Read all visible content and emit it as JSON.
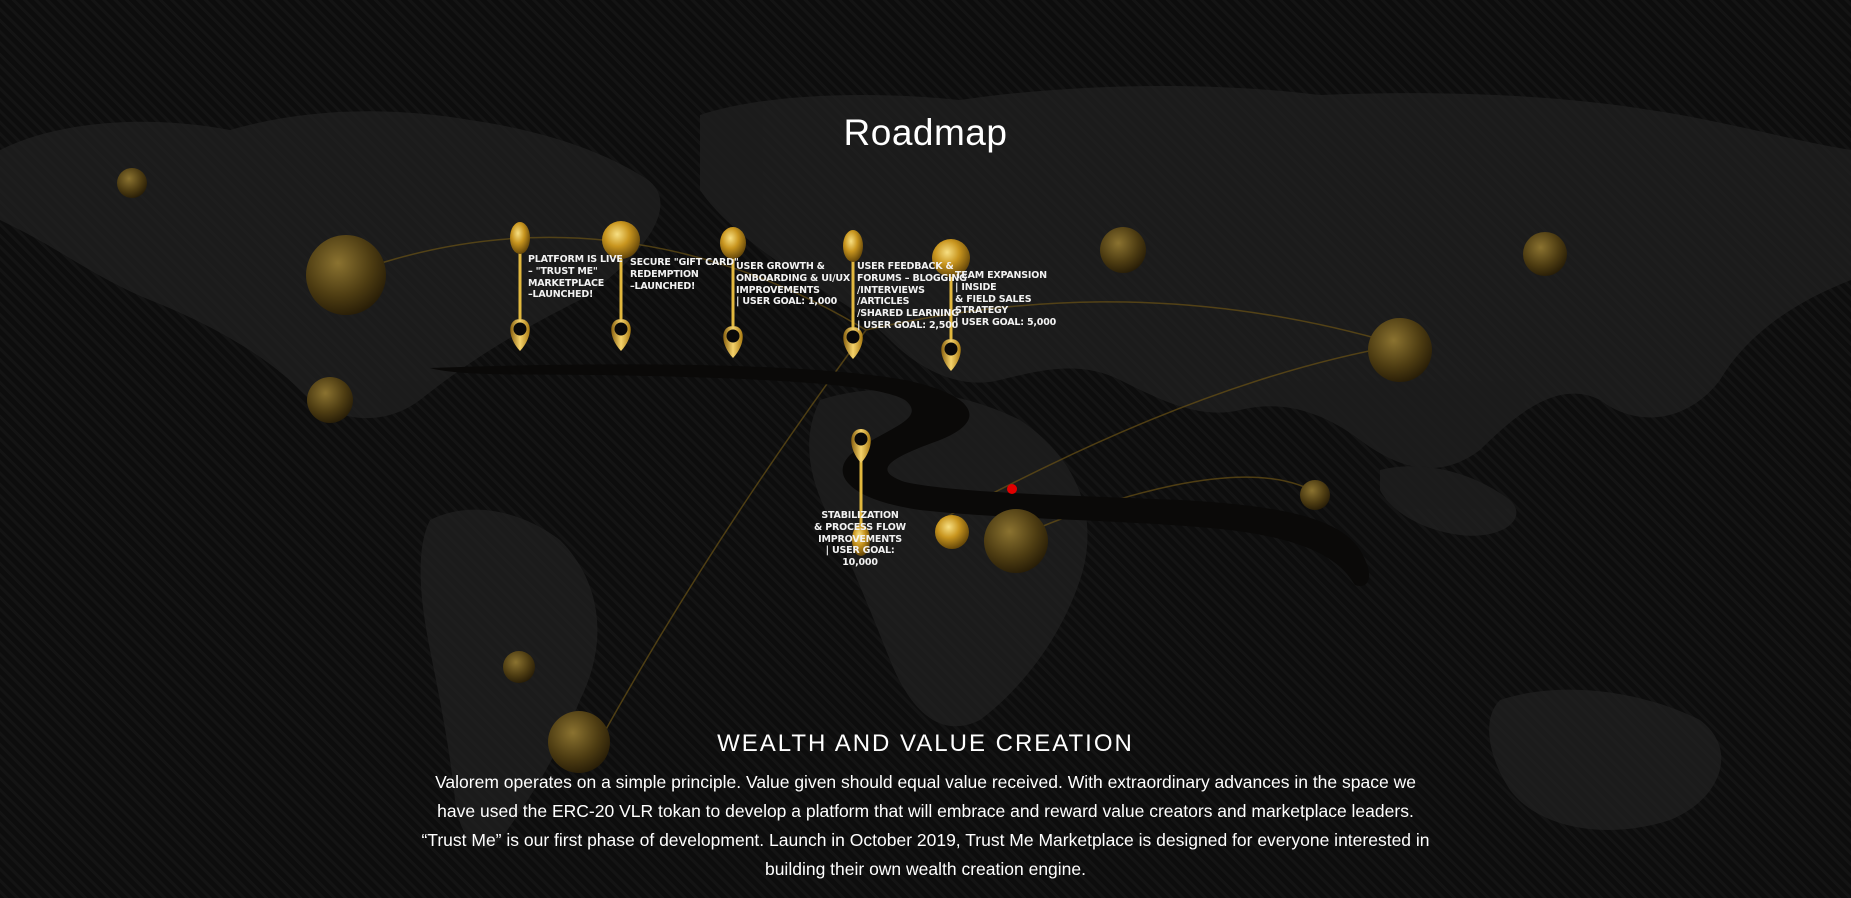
{
  "page": {
    "title": "Roadmap",
    "accent_gold": "#d4a82a",
    "background": "#0b0b0b"
  },
  "milestones": [
    {
      "label": "PLATFORM IS LIVE\n– \"TRUST ME\"\nMARKETPLACE\n–LAUNCHED!"
    },
    {
      "label": "SECURE \"GIFT CARD\"\nREDEMPTION\n–LAUNCHED!"
    },
    {
      "label": "USER GROWTH &\nONBOARDING & UI/UX\nIMPROVEMENTS\n| USER GOAL: 1,000"
    },
    {
      "label": "USER FEEDBACK &\nFORUMS – BLOGGING\n/INTERVIEWS\n/ARTICLES\n/SHARED LEARNING\n| USER GOAL: 2,500"
    },
    {
      "label": "TEAM EXPANSION\n| INSIDE\n& FIELD SALES\nSTRATEGY\n| USER GOAL: 5,000"
    },
    {
      "label": "STABILIZATION\n& PROCESS FLOW\nIMPROVEMENTS\n| USER GOAL: 10,000"
    }
  ],
  "section": {
    "heading": "WEALTH AND VALUE CREATION",
    "body": "Valorem operates on a simple principle. Value given should equal value received. With extraordinary advances in the space we have used the ERC-20 VLR tokan to develop a platform that will embrace and reward value creators and marketplace leaders. “Trust Me” is our first phase of development. Launch in October 2019, Trust Me Marketplace is designed for everyone interested in building their own wealth creation engine."
  }
}
